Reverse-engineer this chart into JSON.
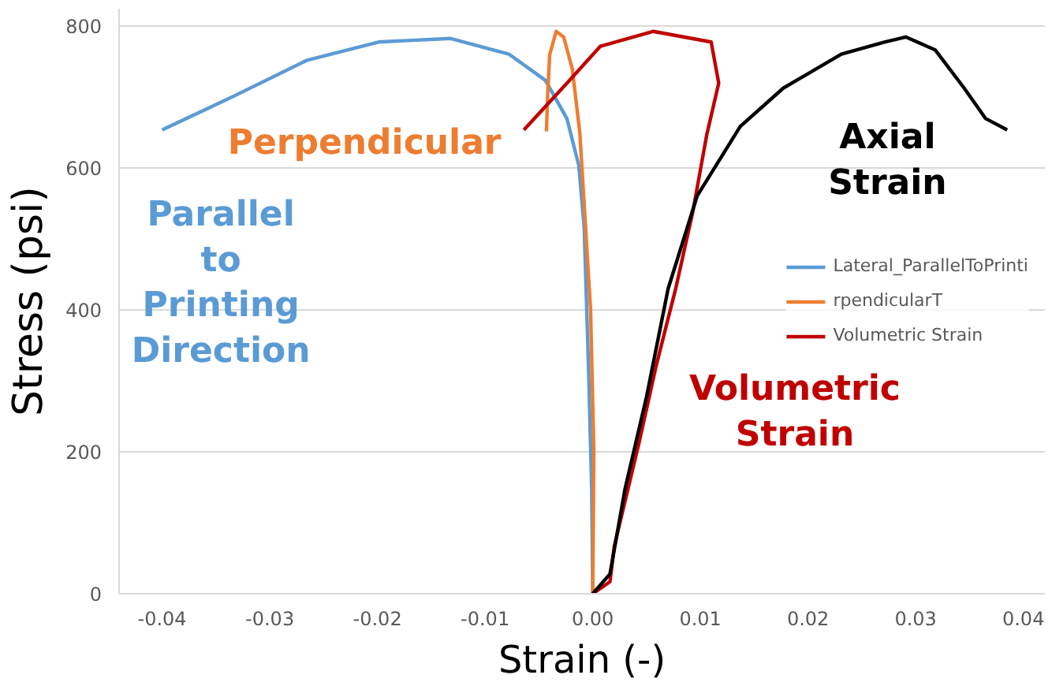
{
  "chart_data": {
    "type": "line",
    "xlabel": "Strain (-)",
    "ylabel": "Stress (psi)",
    "xlim": [
      -0.044,
      0.042
    ],
    "xticks": [
      {
        "value": -0.04,
        "label": "-0.04"
      },
      {
        "value": -0.03,
        "label": "-0.03"
      },
      {
        "value": -0.02,
        "label": "-0.02"
      },
      {
        "value": -0.01,
        "label": "-0.01"
      },
      {
        "value": 0,
        "label": "0.00"
      },
      {
        "value": 0.01,
        "label": "0.01"
      },
      {
        "value": 0.02,
        "label": "0.02"
      },
      {
        "value": 0.03,
        "label": "0.03"
      },
      {
        "value": 0.04,
        "label": "0.04"
      }
    ],
    "ylim": [
      0,
      825
    ],
    "yticks": [
      0,
      200,
      400,
      600,
      800
    ],
    "grid": "y",
    "legend": "right",
    "line_style": "solid",
    "marker": "none",
    "series": [
      {
        "name": "Lateral_ParallelToPrinti",
        "color": "#5b9bd5",
        "x": [
          0,
          -0.0001,
          -0.0004,
          -0.0008,
          -0.0013,
          -0.0024,
          -0.0044,
          -0.0078,
          -0.0132,
          -0.0199,
          -0.0266,
          -0.0333,
          -0.04
        ],
        "values": [
          0,
          148,
          322,
          517,
          604,
          670,
          724,
          761,
          783,
          778,
          752,
          702,
          654
        ]
      },
      {
        "name": "rpendicularT",
        "color": "#ed7d31",
        "x": [
          0,
          0.0001,
          -0.0002,
          -0.0008,
          -0.0012,
          -0.0019,
          -0.0027,
          -0.0034,
          -0.004,
          -0.0042,
          -0.0043
        ],
        "values": [
          0,
          200,
          400,
          550,
          650,
          740,
          785,
          793,
          760,
          700,
          652
        ]
      },
      {
        "name": "Volumetric Strain",
        "color": "#c00000",
        "x": [
          0,
          0.0016,
          0.002,
          0.0043,
          0.0059,
          0.0077,
          0.0093,
          0.0106,
          0.0117,
          0.011,
          0.0056,
          0.0007,
          -0.0024,
          -0.0064
        ],
        "values": [
          0,
          17,
          67,
          213,
          322,
          430,
          539,
          648,
          720,
          778,
          793,
          772,
          720,
          654
        ]
      },
      {
        "color": "#000000",
        "x": [
          0,
          0.0016,
          0.003,
          0.005,
          0.007,
          0.0097,
          0.0137,
          0.0177,
          0.0231,
          0.0271,
          0.0291,
          0.0318,
          0.0345,
          0.0365,
          0.0385
        ],
        "values": [
          0,
          28,
          148,
          278,
          430,
          561,
          659,
          713,
          761,
          778,
          785,
          767,
          713,
          670,
          654
        ]
      }
    ],
    "annotations": [
      "Parallel\nto\nPrinting\nDirection",
      "Perpendicular",
      "Volumetric\nStrain",
      "Axial\nStrain"
    ]
  }
}
